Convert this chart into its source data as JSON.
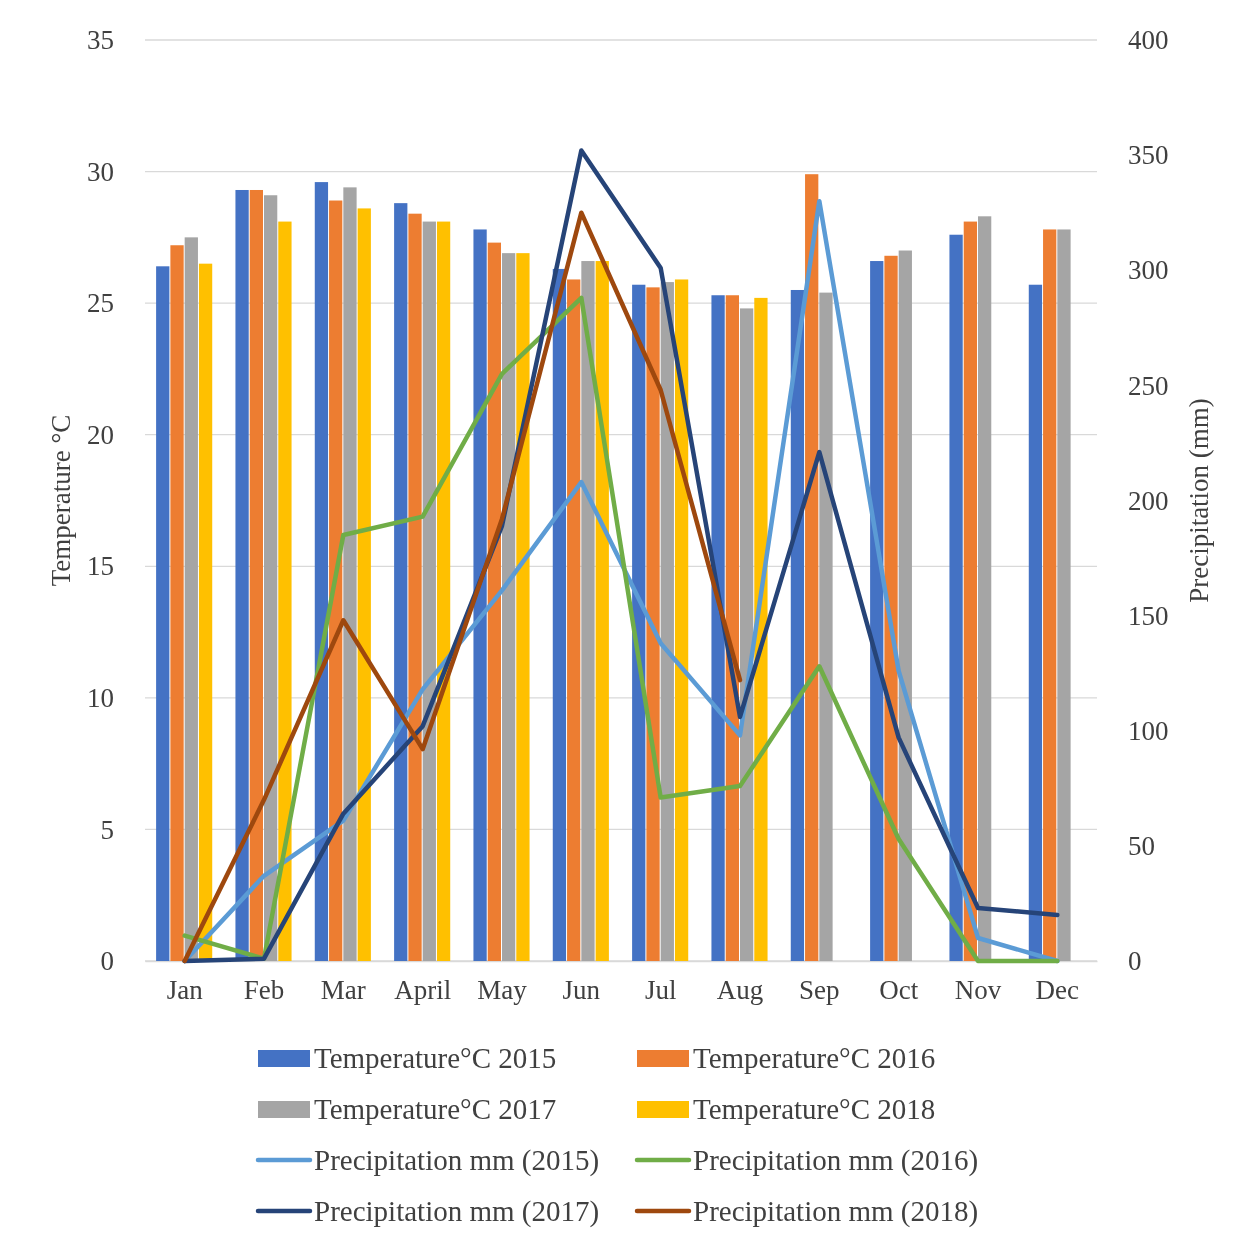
{
  "chart_data": {
    "type": "bar",
    "categories": [
      "Jan",
      "Feb",
      "Mar",
      "April",
      "May",
      "Jun",
      "Jul",
      "Aug",
      "Sep",
      "Oct",
      "Nov",
      "Dec"
    ],
    "ylabel": "Temperature °C",
    "y2label": "Precipitation (mm)",
    "ylim": [
      0,
      35
    ],
    "yticks": [
      0,
      5,
      10,
      15,
      20,
      25,
      30,
      35
    ],
    "y2lim": [
      0,
      400
    ],
    "y2ticks": [
      0,
      50,
      100,
      150,
      200,
      250,
      300,
      350,
      400
    ],
    "grid": "y",
    "legend": "bottom",
    "series": [
      {
        "name": "Temperature°C 2015",
        "color": "#4472c4",
        "values": [
          26.4,
          29.3,
          29.6,
          28.8,
          27.8,
          26.3,
          25.7,
          25.3,
          25.5,
          26.6,
          27.6,
          25.7
        ]
      },
      {
        "name": "Temperature°C 2016",
        "color": "#ed7d31",
        "values": [
          27.2,
          29.3,
          28.9,
          28.4,
          27.3,
          25.9,
          25.6,
          25.3,
          29.9,
          26.8,
          28.1,
          27.8
        ]
      },
      {
        "name": "Temperature°C 2017",
        "color": "#a5a5a5",
        "values": [
          27.5,
          29.1,
          29.4,
          28.1,
          26.9,
          26.6,
          25.8,
          24.8,
          25.4,
          27.0,
          28.3,
          27.8
        ]
      },
      {
        "name": "Temperature°C 2018",
        "color": "#ffc000",
        "values": [
          26.5,
          28.1,
          28.6,
          28.1,
          26.9,
          26.6,
          25.9,
          25.2,
          null,
          null,
          null,
          null
        ]
      },
      {
        "name": "Precipitation mm (2015)",
        "type": "line",
        "axis": "y2",
        "color": "#5b9bd5",
        "values": [
          0,
          37,
          61,
          118,
          161,
          208,
          138,
          98,
          330,
          126,
          10,
          0
        ]
      },
      {
        "name": "Precipitation mm (2016)",
        "type": "line",
        "axis": "y2",
        "color": "#70ad47",
        "values": [
          11,
          1,
          185,
          193,
          255,
          288,
          71,
          76,
          128,
          53,
          0,
          0
        ]
      },
      {
        "name": "Precipitation mm (2017)",
        "type": "line",
        "axis": "y2",
        "color": "#264478",
        "values": [
          0,
          1,
          64,
          102,
          189,
          352,
          301,
          106,
          221,
          97,
          23,
          20
        ]
      },
      {
        "name": "Precipitation mm (2018)",
        "type": "line",
        "axis": "y2",
        "color": "#9e480e",
        "values": [
          0,
          70,
          148,
          92,
          192,
          325,
          248,
          122,
          null,
          null,
          null,
          null
        ]
      }
    ]
  }
}
